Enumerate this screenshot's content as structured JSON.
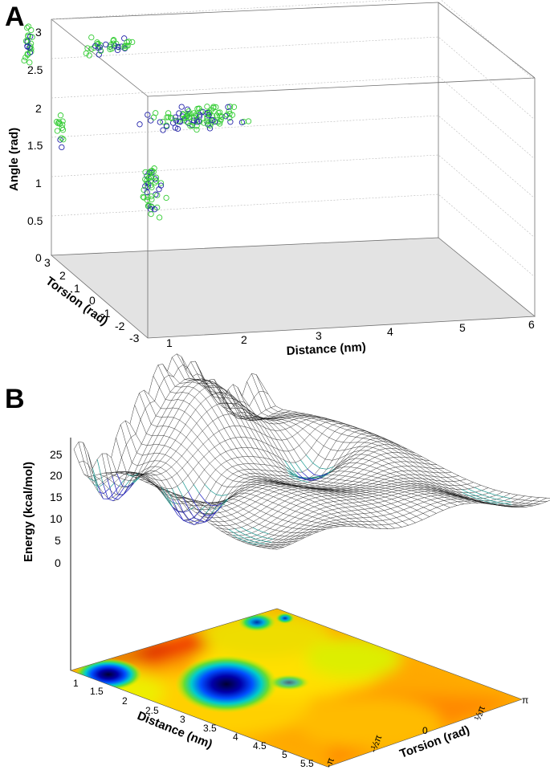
{
  "figure": {
    "panel_a_label": "A",
    "panel_b_label": "B"
  },
  "chart_data": [
    {
      "type": "scatter",
      "panel": "A",
      "xlabel": "Distance (nm)",
      "ylabel": "Torsion (rad)",
      "zlabel": "Angle (rad)",
      "xlim": [
        1,
        6
      ],
      "ylim": [
        -3,
        3
      ],
      "zlim": [
        0,
        3
      ],
      "x_ticks": [
        "1",
        "2",
        "3",
        "4",
        "5",
        "6"
      ],
      "y_ticks": [
        "3",
        "2",
        "1",
        "0",
        "-1",
        "-2",
        "-3"
      ],
      "z_ticks": [
        "0",
        "0.5",
        "1",
        "1.5",
        "2",
        "2.5",
        "3"
      ],
      "grid": true,
      "marker": "open-circle",
      "series_colors": [
        "#33cc33",
        "#2222aa"
      ],
      "clusters": [
        {
          "distance": 0.6,
          "torsion": 2.5,
          "angle_center": 2.75,
          "angle_spread": 0.2
        },
        {
          "distance": 0.7,
          "torsion": 1.0,
          "angle_center": 1.95,
          "angle_spread": 0.2
        },
        {
          "distance": 1.15,
          "torsion": -2.5,
          "angle_center": 1.8,
          "angle_spread": 0.25
        },
        {
          "distance": 1.5,
          "torsion": 2.0,
          "angle_center": 2.8,
          "angle_spread": 0.1
        },
        {
          "distance": 2.1,
          "torsion": -0.8,
          "angle_center": 2.35,
          "angle_spread": 0.12
        }
      ]
    },
    {
      "type": "surface",
      "panel": "B",
      "zlabel": "Energy (kcal/mol)",
      "xlabel": "Distance (nm)",
      "ylabel": "Torsion (rad)",
      "xlim": [
        1,
        5.5
      ],
      "ylim": [
        -3.1416,
        3.1416
      ],
      "zlim": [
        0,
        25
      ],
      "z_ticks": [
        "0",
        "5",
        "10",
        "15",
        "20",
        "25"
      ],
      "x_ticks": [
        "1",
        "1.5",
        "2",
        "2.5",
        "3",
        "3.5",
        "4",
        "4.5",
        "5",
        "5.5"
      ],
      "y_ticks": [
        "-π",
        "-½π",
        "0",
        "½π",
        "π"
      ],
      "minima": [
        {
          "distance": 1.2,
          "torsion": -2.3,
          "energy": 1.5
        },
        {
          "distance": 2.7,
          "torsion": -1.9,
          "energy": 0.0
        },
        {
          "distance": 2.6,
          "torsion": 1.7,
          "energy": 3.0
        }
      ],
      "colormap": "jet"
    }
  ]
}
